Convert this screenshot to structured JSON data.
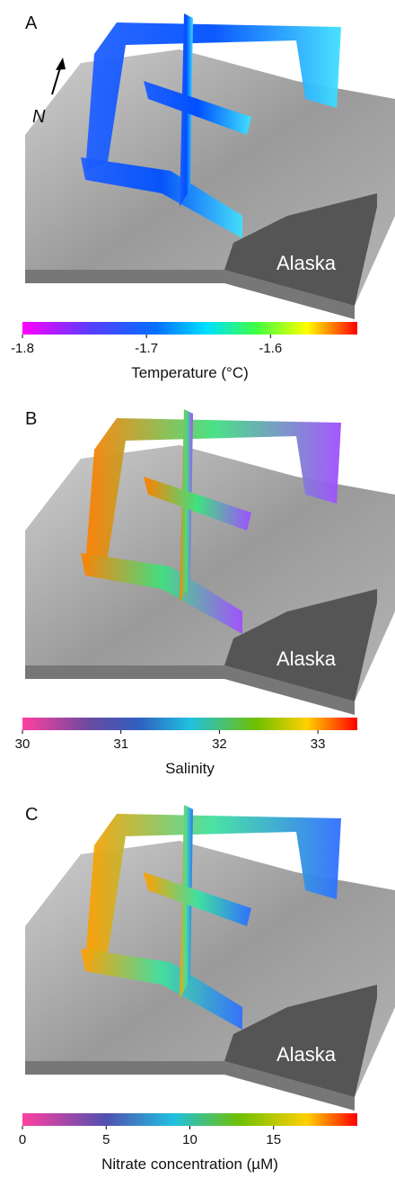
{
  "panels": [
    {
      "label": "A",
      "north": "N",
      "place_label": "Alaska",
      "colorbar": {
        "title": "Temperature (°C)",
        "lim": [
          -1.8,
          -1.53
        ],
        "ticks": [
          -1.8,
          -1.7,
          -1.6
        ]
      }
    },
    {
      "label": "B",
      "place_label": "Alaska",
      "colorbar": {
        "title": "Salinity",
        "lim": [
          30,
          33.4
        ],
        "ticks": [
          30,
          31,
          32,
          33
        ]
      }
    },
    {
      "label": "C",
      "place_label": "Alaska",
      "colorbar": {
        "title": "Nitrate concentration (µM)",
        "lim": [
          0,
          20
        ],
        "ticks": [
          0,
          5,
          10,
          15
        ]
      }
    }
  ]
}
